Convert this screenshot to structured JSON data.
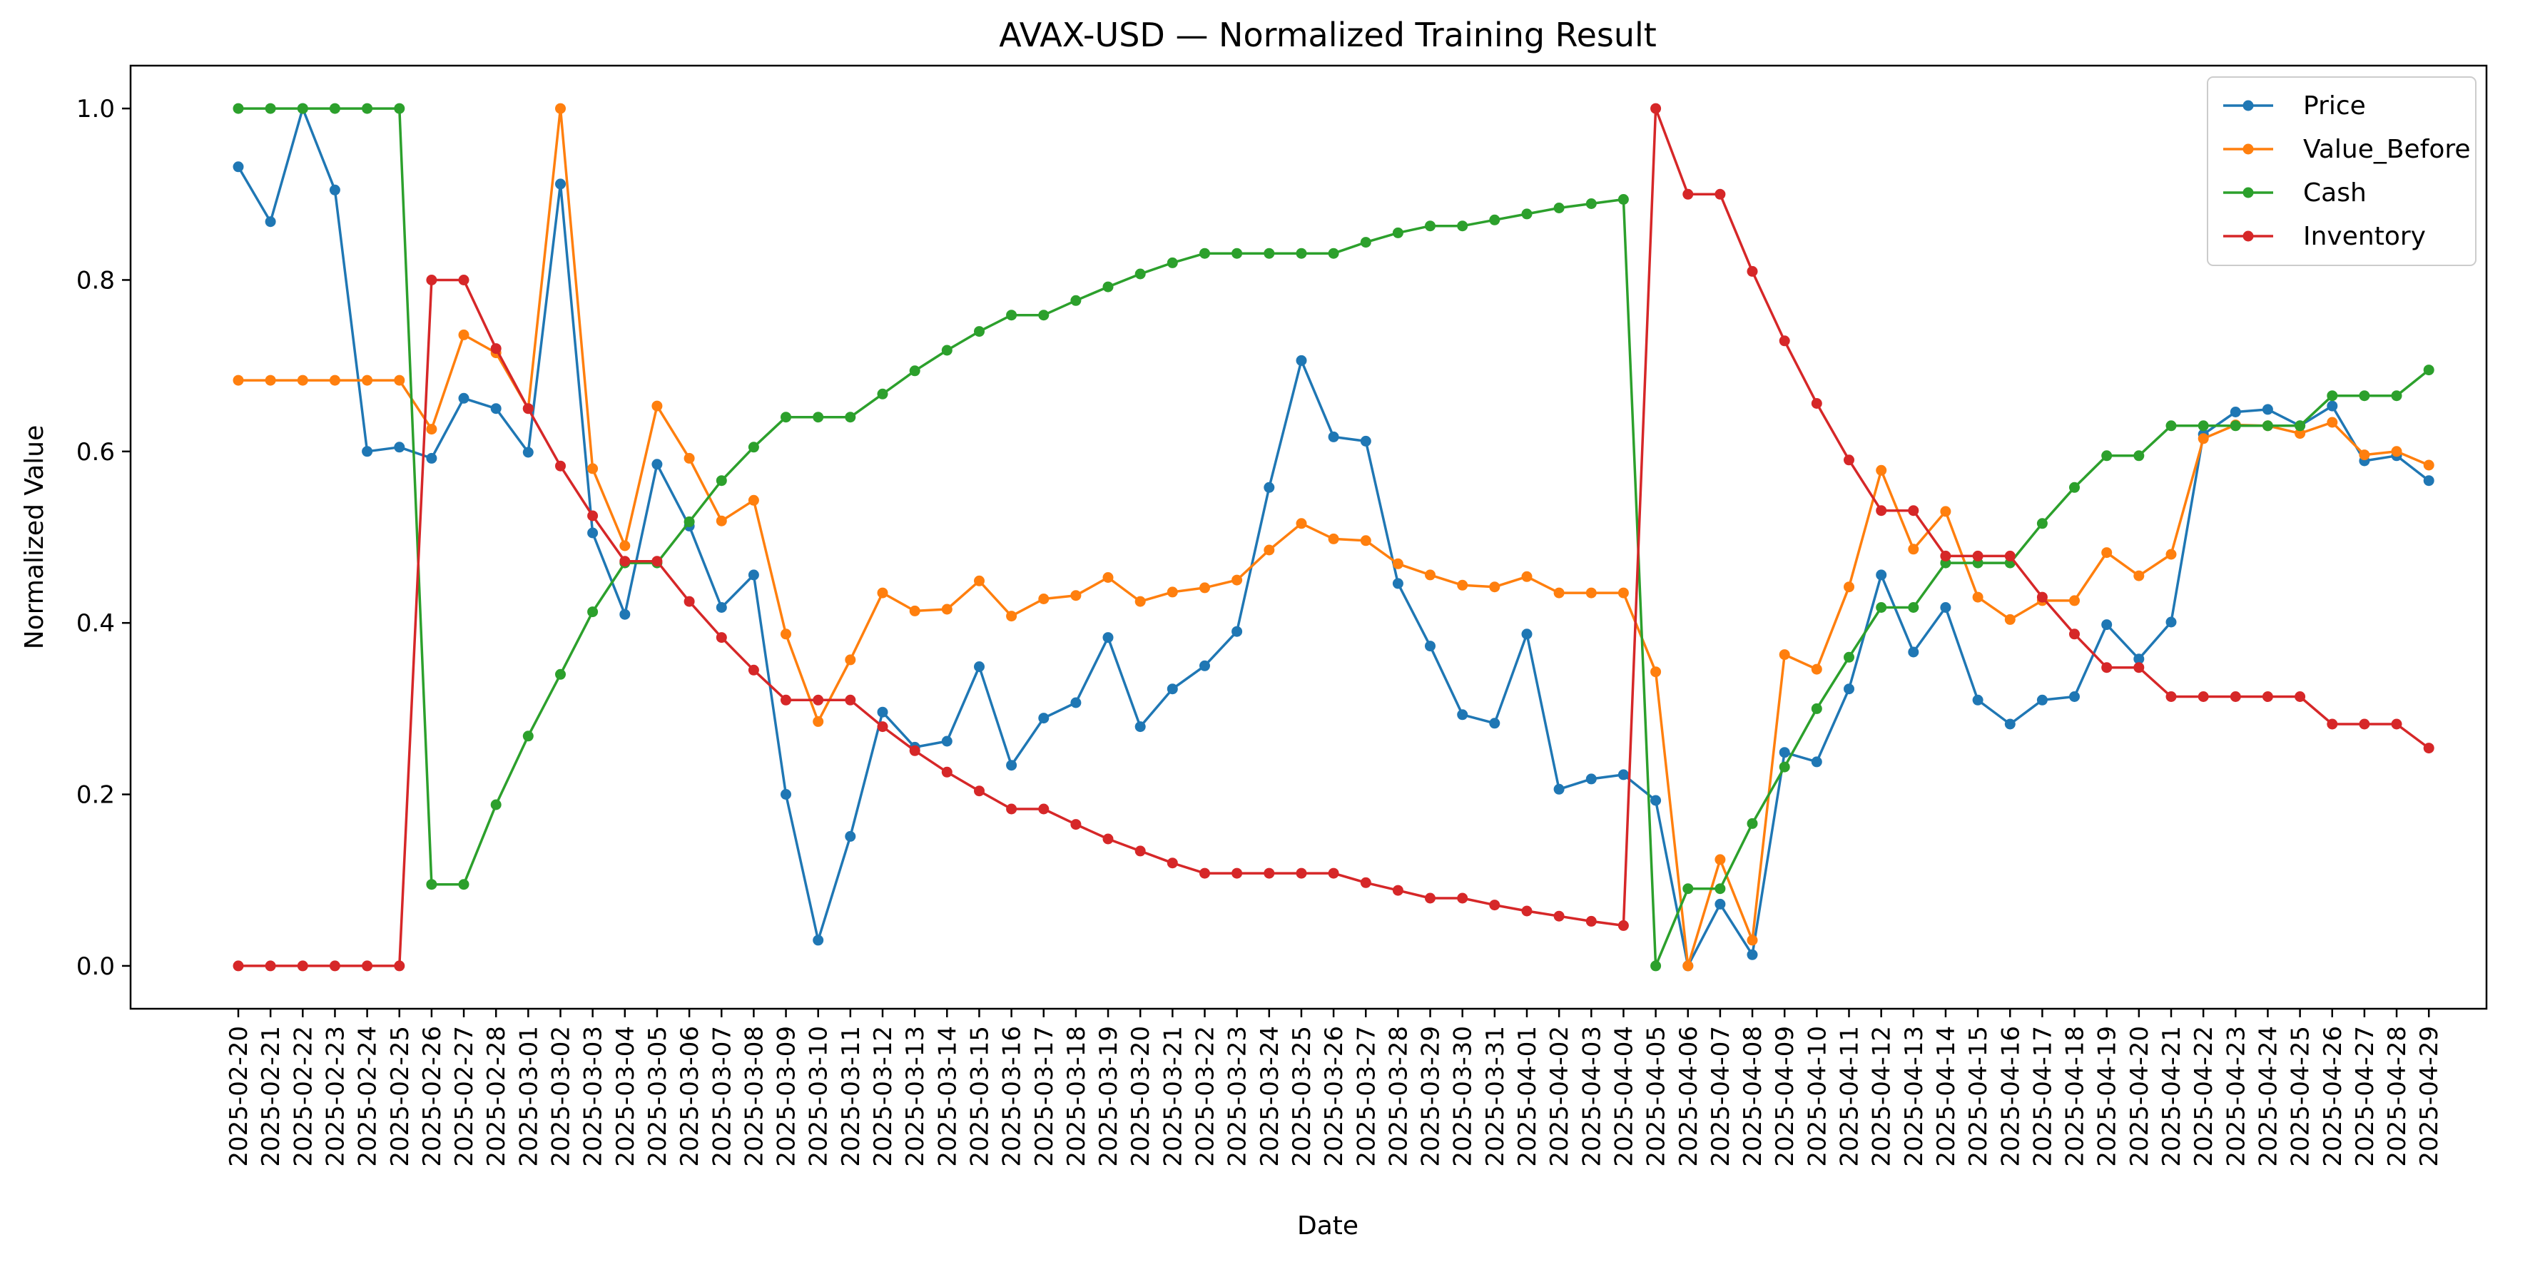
{
  "chart_data": {
    "type": "line",
    "title": "AVAX-USD — Normalized Training Result",
    "xlabel": "Date",
    "ylabel": "Normalized Value",
    "ylim": [
      -0.05,
      1.05
    ],
    "yticks": [
      "0.0",
      "0.2",
      "0.4",
      "0.6",
      "0.8",
      "1.0"
    ],
    "grid": false,
    "legend_position": "top-right",
    "categories": [
      "2025-02-20",
      "2025-02-21",
      "2025-02-22",
      "2025-02-23",
      "2025-02-24",
      "2025-02-25",
      "2025-02-26",
      "2025-02-27",
      "2025-02-28",
      "2025-03-01",
      "2025-03-02",
      "2025-03-03",
      "2025-03-04",
      "2025-03-05",
      "2025-03-06",
      "2025-03-07",
      "2025-03-08",
      "2025-03-09",
      "2025-03-10",
      "2025-03-11",
      "2025-03-12",
      "2025-03-13",
      "2025-03-14",
      "2025-03-15",
      "2025-03-16",
      "2025-03-17",
      "2025-03-18",
      "2025-03-19",
      "2025-03-20",
      "2025-03-21",
      "2025-03-22",
      "2025-03-23",
      "2025-03-24",
      "2025-03-25",
      "2025-03-26",
      "2025-03-27",
      "2025-03-28",
      "2025-03-29",
      "2025-03-30",
      "2025-03-31",
      "2025-04-01",
      "2025-04-02",
      "2025-04-03",
      "2025-04-04",
      "2025-04-05",
      "2025-04-06",
      "2025-04-07",
      "2025-04-08",
      "2025-04-09",
      "2025-04-10",
      "2025-04-11",
      "2025-04-12",
      "2025-04-13",
      "2025-04-14",
      "2025-04-15",
      "2025-04-16",
      "2025-04-17",
      "2025-04-18",
      "2025-04-19",
      "2025-04-20",
      "2025-04-21",
      "2025-04-22",
      "2025-04-23",
      "2025-04-24",
      "2025-04-25",
      "2025-04-26",
      "2025-04-27",
      "2025-04-28",
      "2025-04-29"
    ],
    "series": [
      {
        "name": "Price",
        "color": "#1f77b4",
        "values": [
          0.932,
          0.868,
          1.0,
          0.905,
          0.6,
          0.605,
          0.592,
          0.662,
          0.65,
          0.599,
          0.912,
          0.505,
          0.41,
          0.585,
          0.513,
          0.418,
          0.456,
          0.2,
          0.03,
          0.151,
          0.296,
          0.255,
          0.262,
          0.349,
          0.234,
          0.289,
          0.307,
          0.383,
          0.279,
          0.323,
          0.35,
          0.39,
          0.558,
          0.706,
          0.617,
          0.612,
          0.446,
          0.373,
          0.293,
          0.283,
          0.387,
          0.206,
          0.218,
          0.223,
          0.193,
          0.0,
          0.072,
          0.013,
          0.249,
          0.238,
          0.323,
          0.456,
          0.366,
          0.418,
          0.31,
          0.282,
          0.31,
          0.314,
          0.398,
          0.358,
          0.401,
          0.62,
          0.646,
          0.649,
          0.63,
          0.653,
          0.589,
          0.595,
          0.566
        ]
      },
      {
        "name": "Value_Before",
        "color": "#ff7f0e",
        "values": [
          0.683,
          0.683,
          0.683,
          0.683,
          0.683,
          0.683,
          0.626,
          0.736,
          0.715,
          0.65,
          1.0,
          0.58,
          0.49,
          0.653,
          0.592,
          0.519,
          0.543,
          0.387,
          0.285,
          0.357,
          0.435,
          0.414,
          0.416,
          0.449,
          0.408,
          0.428,
          0.432,
          0.453,
          0.425,
          0.436,
          0.441,
          0.45,
          0.485,
          0.516,
          0.498,
          0.496,
          0.469,
          0.456,
          0.444,
          0.442,
          0.454,
          0.435,
          0.435,
          0.435,
          0.343,
          0.0,
          0.124,
          0.03,
          0.363,
          0.346,
          0.442,
          0.578,
          0.486,
          0.53,
          0.43,
          0.404,
          0.426,
          0.426,
          0.482,
          0.455,
          0.48,
          0.615,
          0.631,
          0.63,
          0.621,
          0.634,
          0.596,
          0.6,
          0.584
        ]
      },
      {
        "name": "Cash",
        "color": "#2ca02c",
        "values": [
          1.0,
          1.0,
          1.0,
          1.0,
          1.0,
          1.0,
          0.095,
          0.095,
          0.188,
          0.268,
          0.34,
          0.413,
          0.47,
          0.47,
          0.518,
          0.566,
          0.605,
          0.64,
          0.64,
          0.64,
          0.667,
          0.694,
          0.718,
          0.74,
          0.759,
          0.759,
          0.776,
          0.792,
          0.807,
          0.82,
          0.831,
          0.831,
          0.831,
          0.831,
          0.831,
          0.844,
          0.855,
          0.863,
          0.863,
          0.87,
          0.877,
          0.884,
          0.889,
          0.894,
          0.0,
          0.09,
          0.09,
          0.166,
          0.232,
          0.3,
          0.36,
          0.418,
          0.418,
          0.47,
          0.47,
          0.47,
          0.516,
          0.558,
          0.595,
          0.595,
          0.63,
          0.63,
          0.63,
          0.63,
          0.63,
          0.665,
          0.665,
          0.665,
          0.695
        ]
      },
      {
        "name": "Inventory",
        "color": "#d62728",
        "values": [
          0.0,
          0.0,
          0.0,
          0.0,
          0.0,
          0.0,
          0.8,
          0.8,
          0.72,
          0.65,
          0.583,
          0.525,
          0.472,
          0.472,
          0.425,
          0.383,
          0.345,
          0.31,
          0.31,
          0.31,
          0.279,
          0.251,
          0.226,
          0.204,
          0.183,
          0.183,
          0.165,
          0.148,
          0.134,
          0.12,
          0.108,
          0.108,
          0.108,
          0.108,
          0.108,
          0.097,
          0.088,
          0.079,
          0.079,
          0.071,
          0.064,
          0.058,
          0.052,
          0.047,
          1.0,
          0.9,
          0.9,
          0.81,
          0.729,
          0.656,
          0.59,
          0.531,
          0.531,
          0.478,
          0.478,
          0.478,
          0.43,
          0.387,
          0.348,
          0.348,
          0.314,
          0.314,
          0.314,
          0.314,
          0.314,
          0.282,
          0.282,
          0.282,
          0.254
        ]
      }
    ]
  }
}
